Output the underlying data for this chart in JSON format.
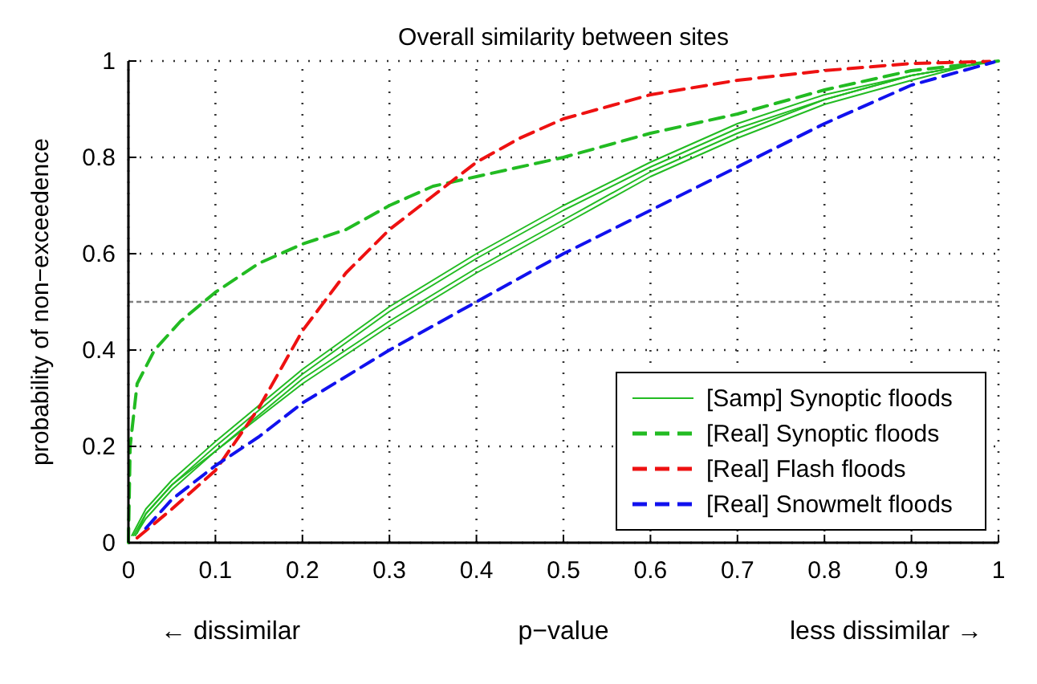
{
  "chart_data": {
    "type": "line",
    "title": "Overall similarity between sites",
    "xlabel": "p−value",
    "ylabel": "probability of non−exceedence",
    "annotations": [
      "← dissimilar",
      "less dissimilar →"
    ],
    "xlim": [
      0,
      1
    ],
    "xticks": [
      0,
      0.1,
      0.2,
      0.3,
      0.4,
      0.5,
      0.6,
      0.7,
      0.8,
      0.9,
      1
    ],
    "ylim": [
      0,
      1
    ],
    "yticks": [
      0,
      0.2,
      0.4,
      0.6,
      0.8,
      1
    ],
    "grid": true,
    "legend": "bottom right",
    "ref_lines": [
      {
        "axis": "y",
        "value": 0.5,
        "color": "#808080",
        "line_style": "dashed"
      }
    ],
    "series": [
      {
        "name": "[Samp] Synoptic floods",
        "color": "#22bb22",
        "line_style": "solid",
        "x": [
          0.004,
          0.02,
          0.05,
          0.1,
          0.2,
          0.3,
          0.4,
          0.5,
          0.6,
          0.7,
          0.8,
          0.9,
          0.99
        ],
        "values": [
          0.015,
          0.07,
          0.13,
          0.21,
          0.36,
          0.49,
          0.6,
          0.7,
          0.79,
          0.87,
          0.93,
          0.97,
          0.998
        ]
      },
      {
        "color": "#22bb22",
        "line_style": "solid",
        "x": [
          0.006,
          0.02,
          0.05,
          0.1,
          0.2,
          0.3,
          0.4,
          0.5,
          0.6,
          0.7,
          0.8,
          0.9,
          0.985
        ],
        "values": [
          0.015,
          0.06,
          0.12,
          0.2,
          0.35,
          0.48,
          0.59,
          0.69,
          0.78,
          0.86,
          0.92,
          0.97,
          0.997
        ]
      },
      {
        "color": "#22bb22",
        "line_style": "solid",
        "x": [
          0.008,
          0.02,
          0.05,
          0.1,
          0.2,
          0.3,
          0.4,
          0.5,
          0.6,
          0.7,
          0.8,
          0.9,
          0.98
        ],
        "values": [
          0.015,
          0.05,
          0.11,
          0.19,
          0.34,
          0.46,
          0.57,
          0.67,
          0.77,
          0.85,
          0.92,
          0.97,
          0.996
        ]
      },
      {
        "color": "#22bb22",
        "line_style": "solid",
        "x": [
          0.01,
          0.02,
          0.05,
          0.1,
          0.2,
          0.3,
          0.4,
          0.5,
          0.6,
          0.7,
          0.8,
          0.9,
          0.975
        ],
        "values": [
          0.02,
          0.06,
          0.12,
          0.19,
          0.33,
          0.45,
          0.56,
          0.66,
          0.76,
          0.84,
          0.91,
          0.96,
          0.995
        ]
      },
      {
        "name": "[Real] Synoptic floods",
        "color": "#22bb22",
        "line_style": "dashed",
        "x": [
          0,
          0.002,
          0.01,
          0.03,
          0.06,
          0.1,
          0.15,
          0.2,
          0.25,
          0.3,
          0.35,
          0.4,
          0.5,
          0.6,
          0.7,
          0.8,
          0.9,
          1
        ],
        "values": [
          0,
          0.2,
          0.33,
          0.4,
          0.46,
          0.52,
          0.58,
          0.62,
          0.65,
          0.7,
          0.74,
          0.76,
          0.8,
          0.85,
          0.89,
          0.94,
          0.98,
          1
        ]
      },
      {
        "name": "[Real] Flash floods",
        "color": "#ee1111",
        "line_style": "dashed",
        "x": [
          0.01,
          0.05,
          0.1,
          0.15,
          0.2,
          0.25,
          0.3,
          0.35,
          0.4,
          0.45,
          0.5,
          0.6,
          0.7,
          0.8,
          0.9,
          0.99
        ],
        "values": [
          0.01,
          0.07,
          0.15,
          0.28,
          0.44,
          0.56,
          0.65,
          0.72,
          0.79,
          0.84,
          0.88,
          0.93,
          0.96,
          0.98,
          0.995,
          0.999
        ]
      },
      {
        "name": "[Real] Snowmelt floods",
        "color": "#1111ee",
        "line_style": "dashed",
        "x": [
          0.02,
          0.05,
          0.1,
          0.15,
          0.2,
          0.3,
          0.4,
          0.5,
          0.6,
          0.7,
          0.8,
          0.9,
          0.995
        ],
        "values": [
          0.03,
          0.09,
          0.16,
          0.22,
          0.29,
          0.4,
          0.5,
          0.6,
          0.69,
          0.78,
          0.87,
          0.95,
          0.998
        ]
      }
    ]
  }
}
